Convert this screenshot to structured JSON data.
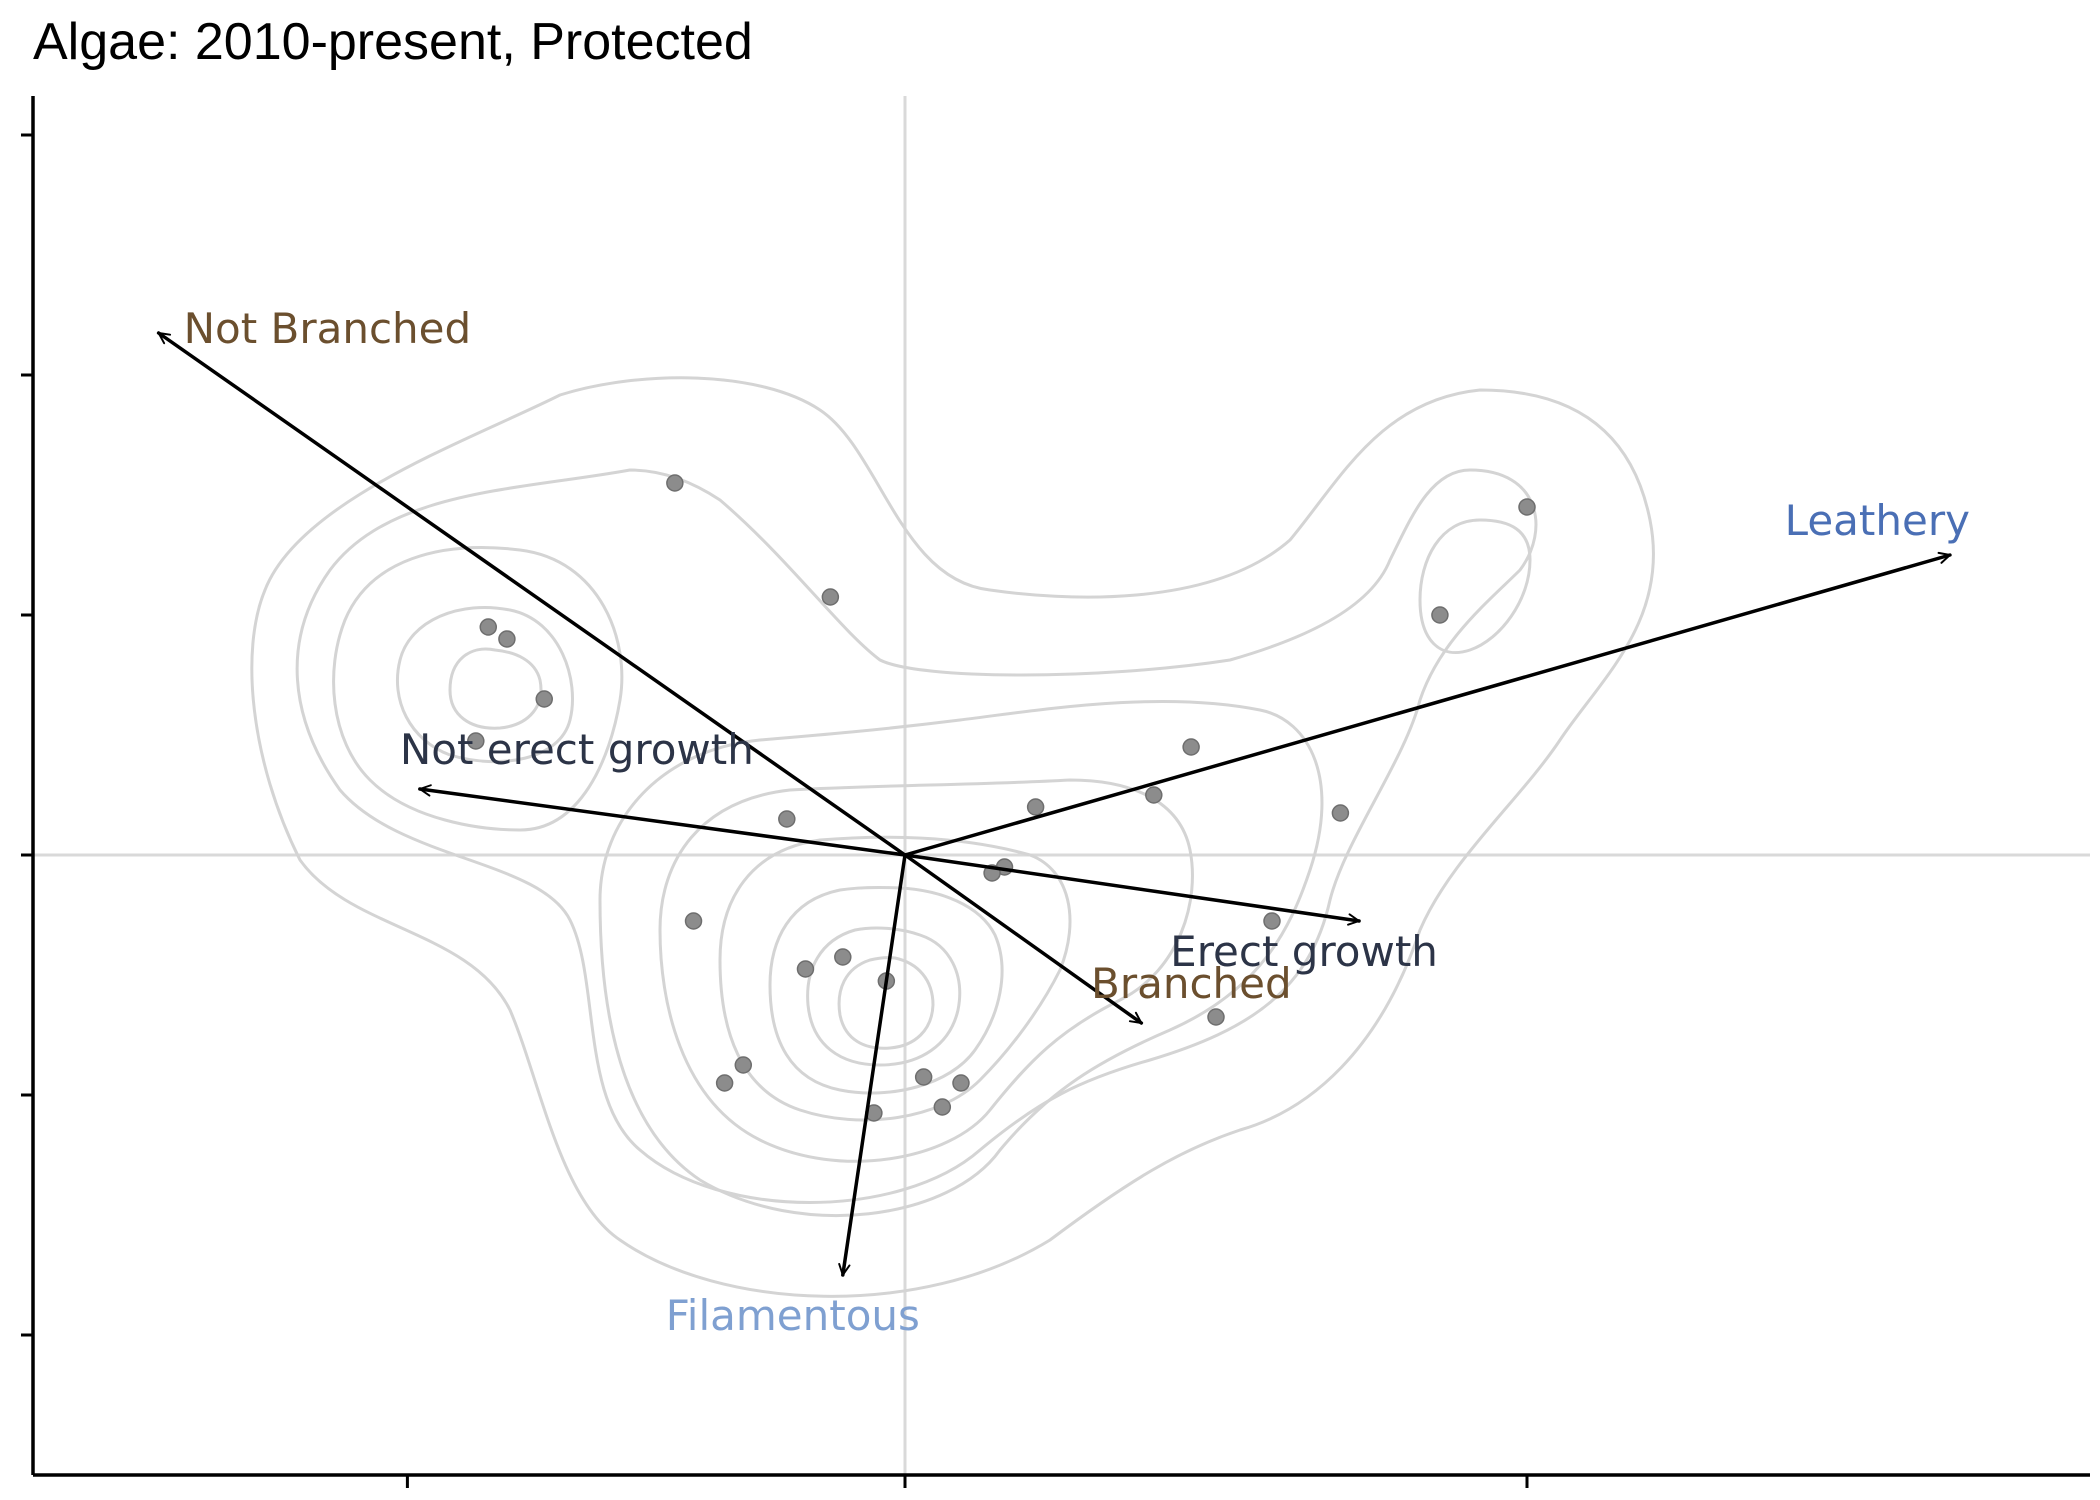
{
  "chart_data": {
    "type": "scatter",
    "title": "Algae: 2010-present, Protected",
    "xlabel": "",
    "ylabel": "",
    "xlim": [
      -1.0,
      2.0
    ],
    "ylim": [
      -1.0,
      1.2
    ],
    "grid": false,
    "reference_lines": {
      "x": 0,
      "y": 0
    },
    "x_ticks": [
      -0.8,
      0,
      1.0
    ],
    "y_ticks": [
      -0.8,
      -0.4,
      0,
      0.4,
      0.8,
      1.2
    ],
    "points": [
      {
        "x": -0.37,
        "y": 0.62
      },
      {
        "x": -0.12,
        "y": 0.43
      },
      {
        "x": -0.67,
        "y": 0.38
      },
      {
        "x": -0.64,
        "y": 0.36
      },
      {
        "x": -0.58,
        "y": 0.26
      },
      {
        "x": -0.69,
        "y": 0.19
      },
      {
        "x": 0.46,
        "y": 0.18
      },
      {
        "x": 0.21,
        "y": 0.08
      },
      {
        "x": 0.4,
        "y": 0.1
      },
      {
        "x": 0.7,
        "y": 0.07
      },
      {
        "x": -0.19,
        "y": 0.06
      },
      {
        "x": 0.16,
        "y": -0.02
      },
      {
        "x": 0.14,
        "y": -0.03
      },
      {
        "x": -0.34,
        "y": -0.11
      },
      {
        "x": 0.59,
        "y": -0.11
      },
      {
        "x": -0.1,
        "y": -0.17
      },
      {
        "x": -0.16,
        "y": -0.19
      },
      {
        "x": -0.03,
        "y": -0.21
      },
      {
        "x": 0.5,
        "y": -0.27
      },
      {
        "x": -0.26,
        "y": -0.35
      },
      {
        "x": -0.29,
        "y": -0.38
      },
      {
        "x": 0.03,
        "y": -0.37
      },
      {
        "x": 0.09,
        "y": -0.38
      },
      {
        "x": 0.06,
        "y": -0.42
      },
      {
        "x": -0.05,
        "y": -0.43
      },
      {
        "x": 1.0,
        "y": 0.58
      },
      {
        "x": 0.86,
        "y": 0.4
      }
    ],
    "vectors": [
      {
        "label": "Not Branched",
        "x": -1.2,
        "y": 0.87,
        "color": "#6b4f2e"
      },
      {
        "label": "Leathery",
        "x": 1.68,
        "y": 0.5,
        "color": "#4a6fb5"
      },
      {
        "label": "Not erect growth",
        "x": -0.78,
        "y": 0.11,
        "color": "#2c3447"
      },
      {
        "label": "Erect growth",
        "x": 0.73,
        "y": -0.11,
        "color": "#2c3447"
      },
      {
        "label": "Branched",
        "x": 0.38,
        "y": -0.28,
        "color": "#6b4f2e"
      },
      {
        "label": "Filamentous",
        "x": -0.1,
        "y": -0.7,
        "color": "#7fa0d1"
      }
    ],
    "density_contours": true,
    "colors": {
      "points": "#8c8c8c",
      "contours": "#d4d4d4",
      "arrows": "#000000",
      "reference_lines": "#d9d9d9"
    }
  }
}
